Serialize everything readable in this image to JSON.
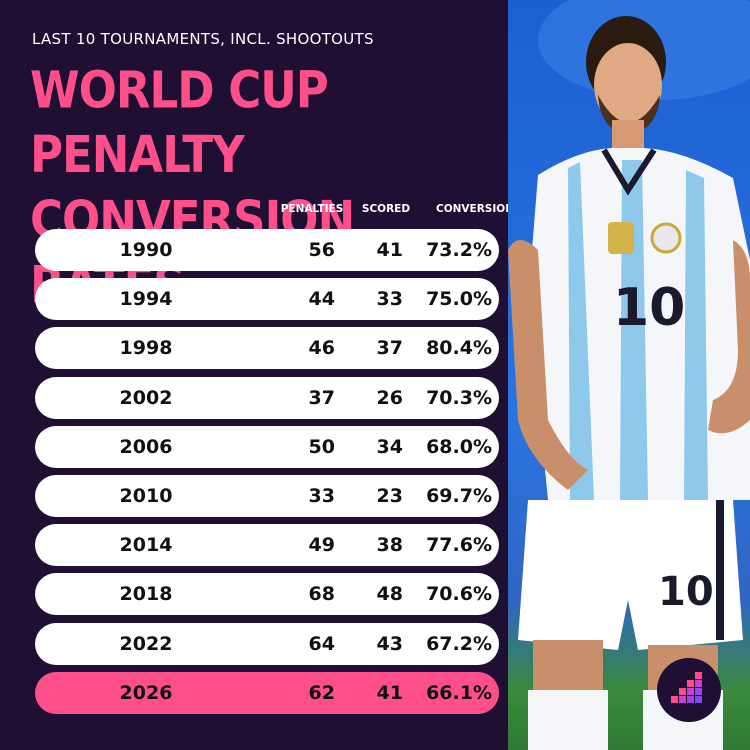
{
  "header": {
    "subtitle": "LAST 10 TOURNAMENTS, INCL. SHOOTOUTS",
    "title_line1": "WORLD CUP PENALTY",
    "title_line2": "CONVERSION RATES"
  },
  "columns": {
    "penalties": "PENALTIES",
    "scored": "SCORED",
    "conversion": "CONVERSION"
  },
  "colors": {
    "background": "#1e0f33",
    "accent": "#ff4f8b",
    "row": "#ffffff"
  },
  "icons": {
    "brand_logo": "bar-chart-logo-icon"
  },
  "chart_data": {
    "type": "table",
    "title": "WORLD CUP PENALTY CONVERSION RATES",
    "subtitle": "LAST 10 TOURNAMENTS, INCL. SHOOTOUTS",
    "columns": [
      "",
      "PENALTIES",
      "SCORED",
      "CONVERSION"
    ],
    "rows": [
      {
        "year": "1990",
        "penalties": "56",
        "scored": "41",
        "conversion": "73.2%"
      },
      {
        "year": "1994",
        "penalties": "44",
        "scored": "33",
        "conversion": "75.0%"
      },
      {
        "year": "1998",
        "penalties": "46",
        "scored": "37",
        "conversion": "80.4%"
      },
      {
        "year": "2002",
        "penalties": "37",
        "scored": "26",
        "conversion": "70.3%"
      },
      {
        "year": "2006",
        "penalties": "50",
        "scored": "34",
        "conversion": "68.0%"
      },
      {
        "year": "2010",
        "penalties": "33",
        "scored": "23",
        "conversion": "69.7%"
      },
      {
        "year": "2014",
        "penalties": "49",
        "scored": "38",
        "conversion": "77.6%"
      },
      {
        "year": "2018",
        "penalties": "68",
        "scored": "48",
        "conversion": "70.6%"
      },
      {
        "year": "2022",
        "penalties": "64",
        "scored": "43",
        "conversion": "67.2%"
      },
      {
        "year": "2026",
        "penalties": "62",
        "scored": "41",
        "conversion": "66.1%",
        "highlight": true
      }
    ]
  }
}
